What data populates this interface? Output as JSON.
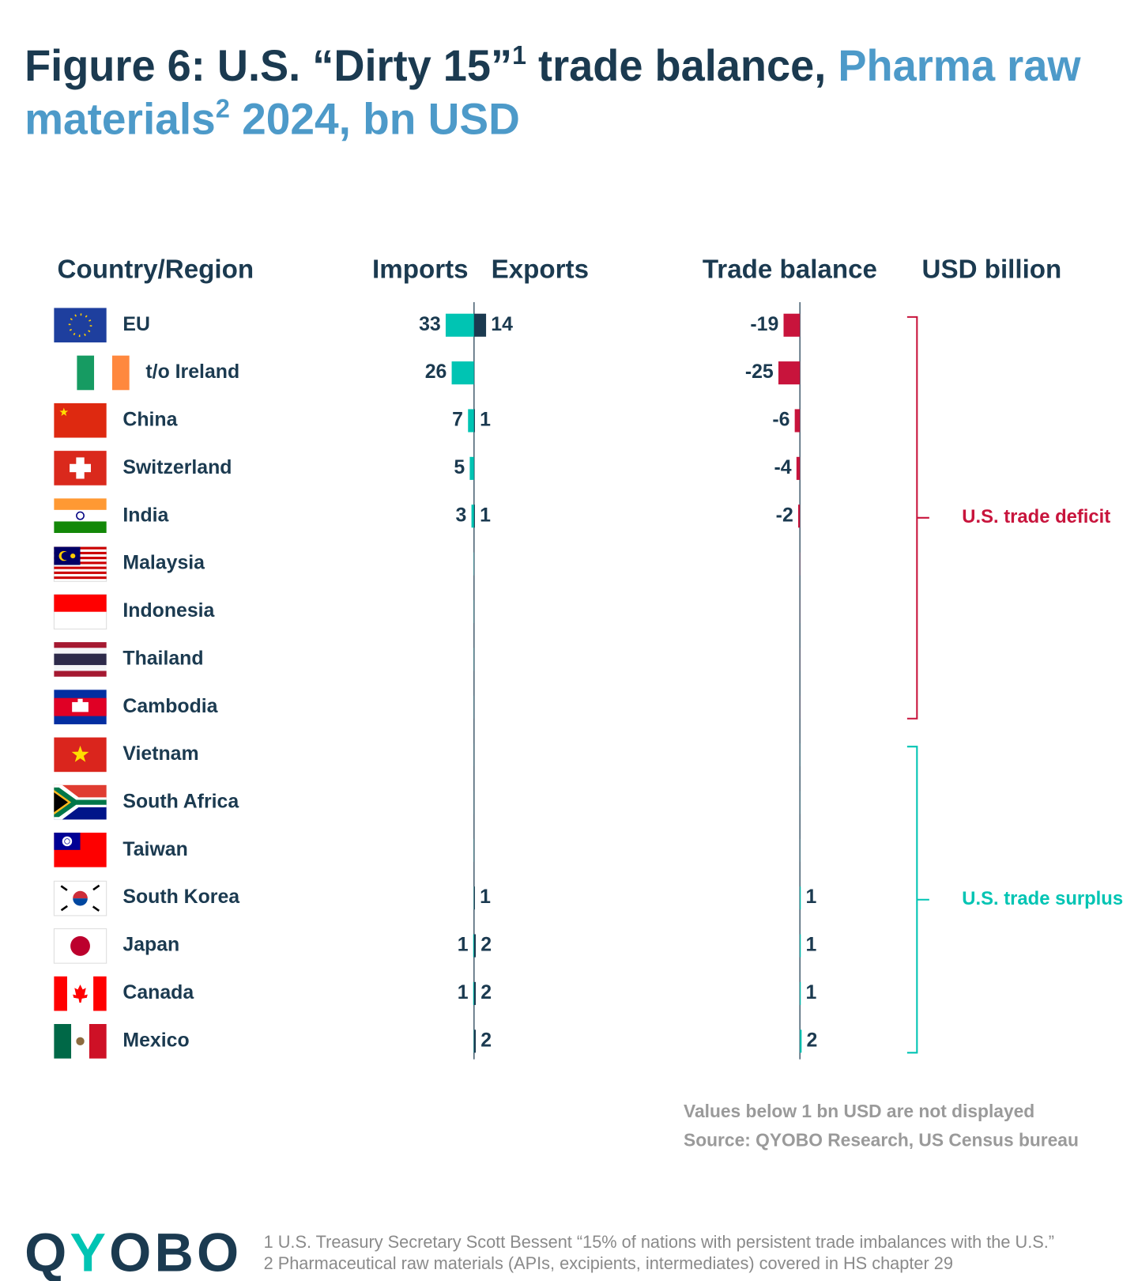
{
  "chart_data": {
    "type": "diverging-bar",
    "title_lines": [
      [
        {
          "text": "Figure 6: U.S. “Dirty 15”",
          "color": "#1b3a50"
        },
        {
          "text": "1",
          "color": "#1b3a50",
          "sup": true
        },
        {
          "text": " trade balance, ",
          "color": "#1b3a50"
        },
        {
          "text": "Pharma raw",
          "color": "#4d9ac9"
        }
      ],
      [
        {
          "text": "materials",
          "color": "#4d9ac9"
        },
        {
          "text": "2",
          "color": "#4d9ac9",
          "sup": true
        },
        {
          "text": " 2024, bn USD",
          "color": "#4d9ac9"
        }
      ]
    ],
    "category_header": "Country/Region",
    "unit_label": "USD billion",
    "categories": [
      "EU",
      "t/o Ireland",
      "China",
      "Switzerland",
      "India",
      "Malaysia",
      "Indonesia",
      "Thailand",
      "Cambodia",
      "Vietnam",
      "South Africa",
      "Taiwan",
      "South Korea",
      "Japan",
      "Canada",
      "Mexico"
    ],
    "series": [
      {
        "name": "Imports",
        "color": "#00c4b3",
        "values": [
          33,
          26,
          7,
          5,
          3,
          0.3,
          0.2,
          0.2,
          0.1,
          0.1,
          0.1,
          0.2,
          0.3,
          1,
          1,
          0.4
        ],
        "value_labels": [
          "33",
          "26",
          "7",
          "5",
          "3",
          null,
          null,
          null,
          null,
          null,
          null,
          null,
          null,
          "1",
          "1",
          null
        ]
      },
      {
        "name": "Exports",
        "color": "#1b3a50",
        "values": [
          14,
          0.2,
          1,
          0.6,
          1,
          0.1,
          0.1,
          0.1,
          0,
          0.2,
          0.2,
          0.3,
          1,
          2,
          2,
          2
        ],
        "value_labels": [
          "14",
          null,
          "1",
          null,
          "1",
          null,
          null,
          null,
          null,
          null,
          null,
          null,
          "1",
          "2",
          "2",
          "2"
        ]
      },
      {
        "name": "Trade balance",
        "negative_color": "#c8143c",
        "positive_color": "#00c4b3",
        "values": [
          -19,
          -25,
          -6,
          -4,
          -2,
          -0.2,
          -0.1,
          -0.1,
          -0.1,
          0.1,
          0.1,
          0.1,
          1,
          1,
          1,
          2
        ],
        "value_labels": [
          "-19",
          "-25",
          "-6",
          "-4",
          "-2",
          null,
          null,
          null,
          null,
          null,
          null,
          null,
          "1",
          "1",
          "1",
          "2"
        ]
      }
    ],
    "xlim": [
      -40,
      40
    ],
    "annotations": [
      "U.S. trade deficit",
      "U.S. trade surplus"
    ],
    "notes": [
      "Values below 1 bn USD are not displayed",
      "Source: QYOBO Research, US Census bureau"
    ],
    "footnotes": [
      "1 U.S. Treasury Secretary Scott Bessent “15% of nations with persistent trade imbalances with the U.S.”",
      "2 Pharmaceutical raw materials (APIs, excipients, intermediates) covered in HS chapter 29"
    ],
    "logo": [
      {
        "text": "Q",
        "color": "#1b3a50"
      },
      {
        "text": "Y",
        "color": "#00c4b3"
      },
      {
        "text": "OBO",
        "color": "#1b3a50"
      }
    ]
  }
}
